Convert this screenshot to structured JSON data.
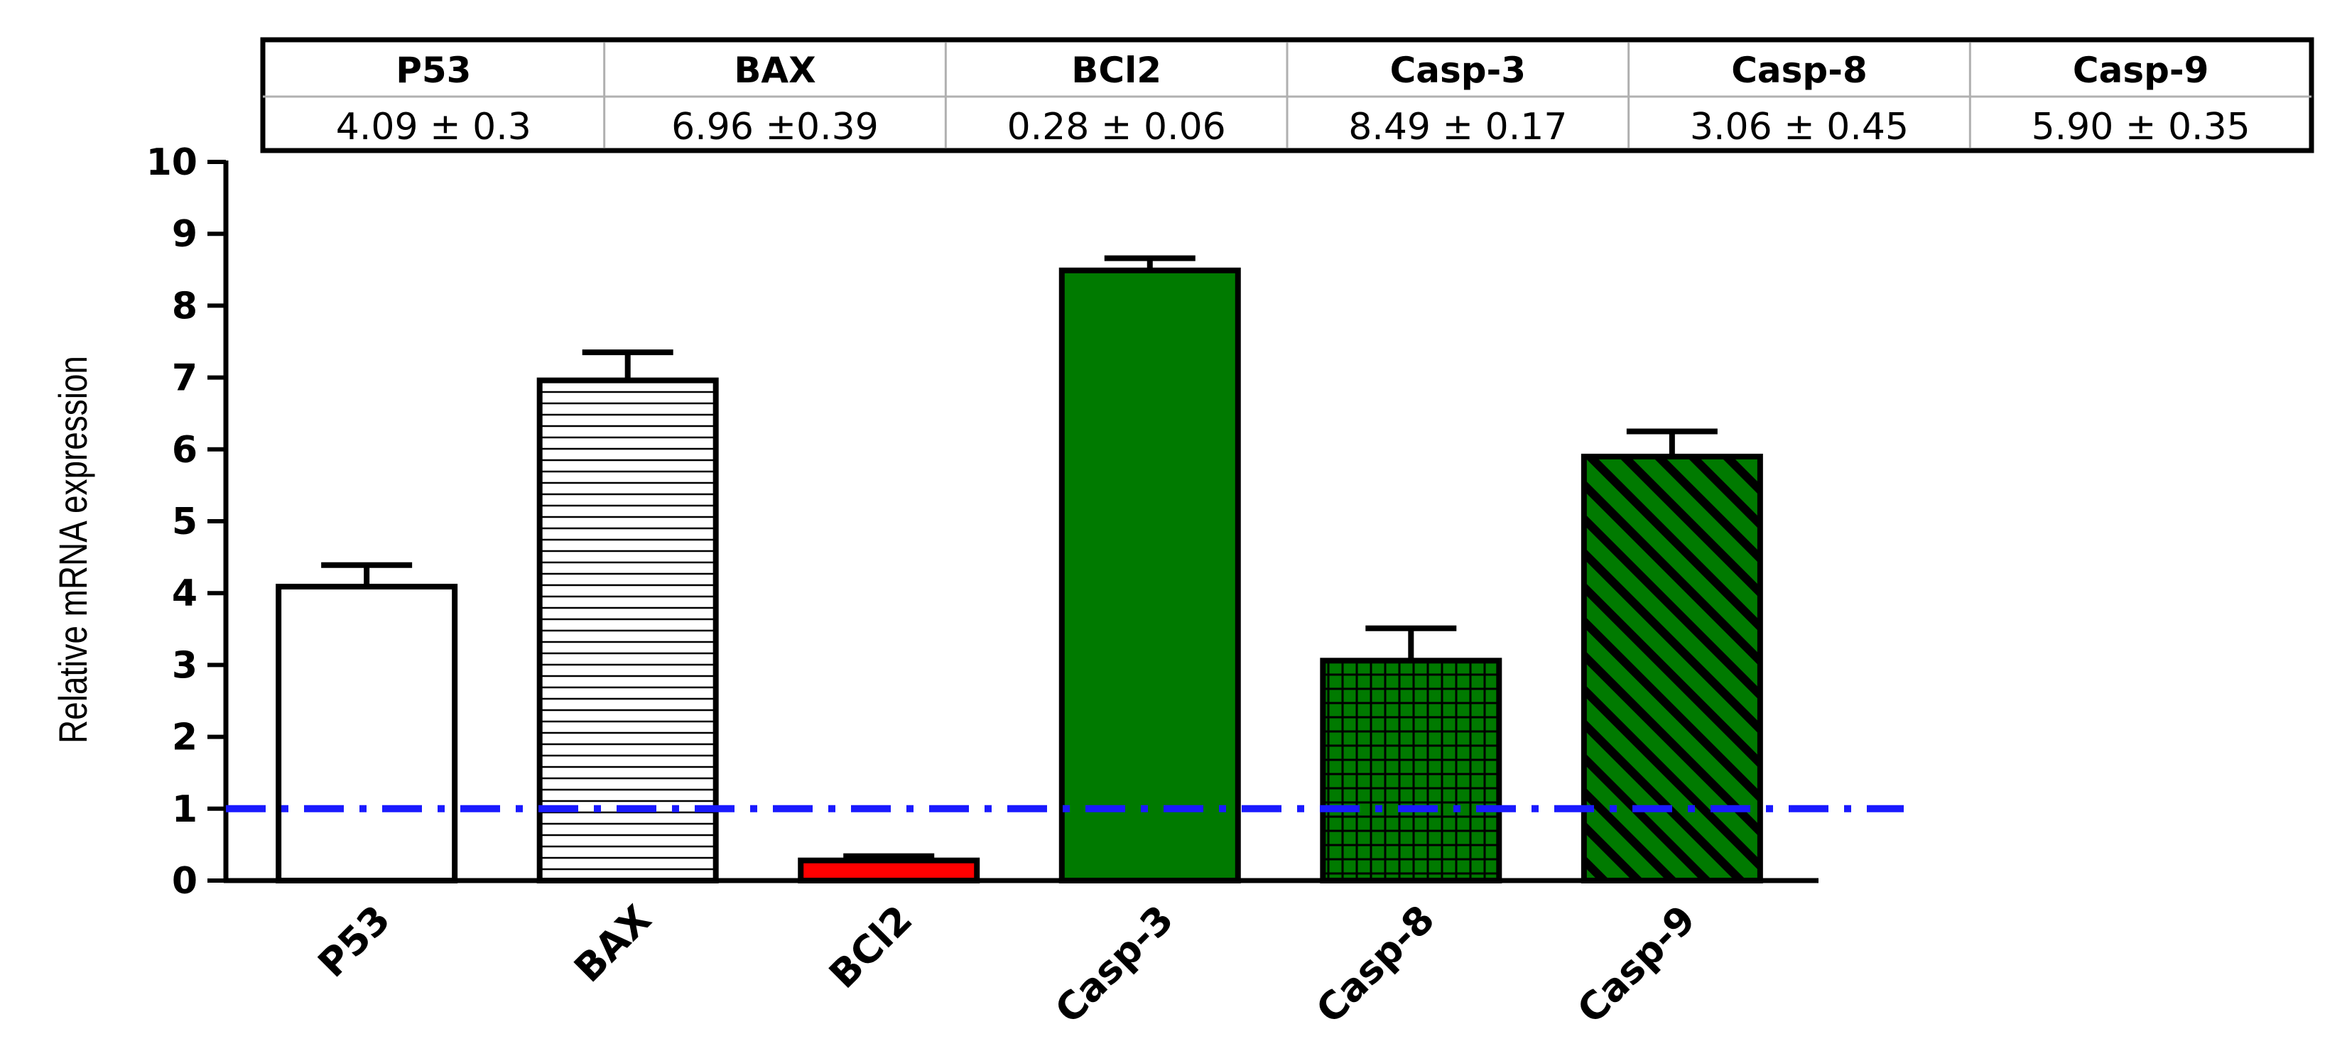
{
  "chart_data": {
    "type": "bar",
    "categories": [
      "P53",
      "BAX",
      "BCl2",
      "Casp-3",
      "Casp-8",
      "Casp-9"
    ],
    "values": [
      4.09,
      6.96,
      0.28,
      8.49,
      3.06,
      5.9
    ],
    "errors": [
      0.3,
      0.39,
      0.06,
      0.17,
      0.45,
      0.35
    ],
    "ylabel": "Relative mRNA expression",
    "ylim": [
      0,
      10
    ],
    "yticks": [
      "0",
      "1",
      "2",
      "3",
      "4",
      "5",
      "6",
      "7",
      "8",
      "9",
      "10"
    ],
    "reference_line": {
      "value": 1,
      "color": "#1a1aff",
      "style": "dash-dot"
    },
    "bar_styles": [
      {
        "fill": "#ffffff",
        "pattern": "none"
      },
      {
        "fill": "#ffffff",
        "pattern": "horizontal-lines"
      },
      {
        "fill": "#ff0000",
        "pattern": "none"
      },
      {
        "fill": "#007a00",
        "pattern": "none"
      },
      {
        "fill": "#007a00",
        "pattern": "grid"
      },
      {
        "fill": "#007a00",
        "pattern": "diagonal-lines"
      }
    ],
    "grid": false,
    "table": {
      "headers": [
        "P53",
        "BAX",
        "BCl2",
        "Casp-3",
        "Casp-8",
        "Casp-9"
      ],
      "values": [
        "4.09 ± 0.3",
        "6.96 ±0.39",
        "0.28 ± 0.06",
        "8.49 ± 0.17",
        "3.06 ± 0.45",
        "5.90 ± 0.35"
      ]
    }
  }
}
